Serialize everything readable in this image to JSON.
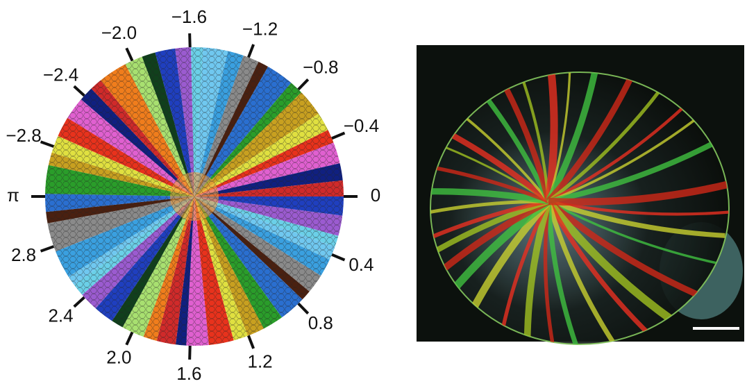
{
  "chart_data": {
    "type": "polar-angle-axis",
    "xlim": [
      -3.14159,
      3.14159
    ],
    "xticks": [
      0,
      {
        "value": -0.4,
        "label": "−0.4"
      },
      {
        "value": -0.8,
        "label": "−0.8"
      },
      {
        "value": -1.2,
        "label": "−1.2"
      },
      {
        "value": -1.6,
        "label": "−1.6"
      },
      {
        "value": -2.0,
        "label": "−2.0"
      },
      {
        "value": -2.4,
        "label": "−2.4"
      },
      {
        "value": -2.8,
        "label": "−2.8"
      },
      {
        "value": 3.14159,
        "label": "π"
      },
      2.8,
      2.4,
      {
        "value": 2.0,
        "label": "2.0"
      },
      1.6,
      1.2,
      0.8,
      0.4
    ]
  }
}
